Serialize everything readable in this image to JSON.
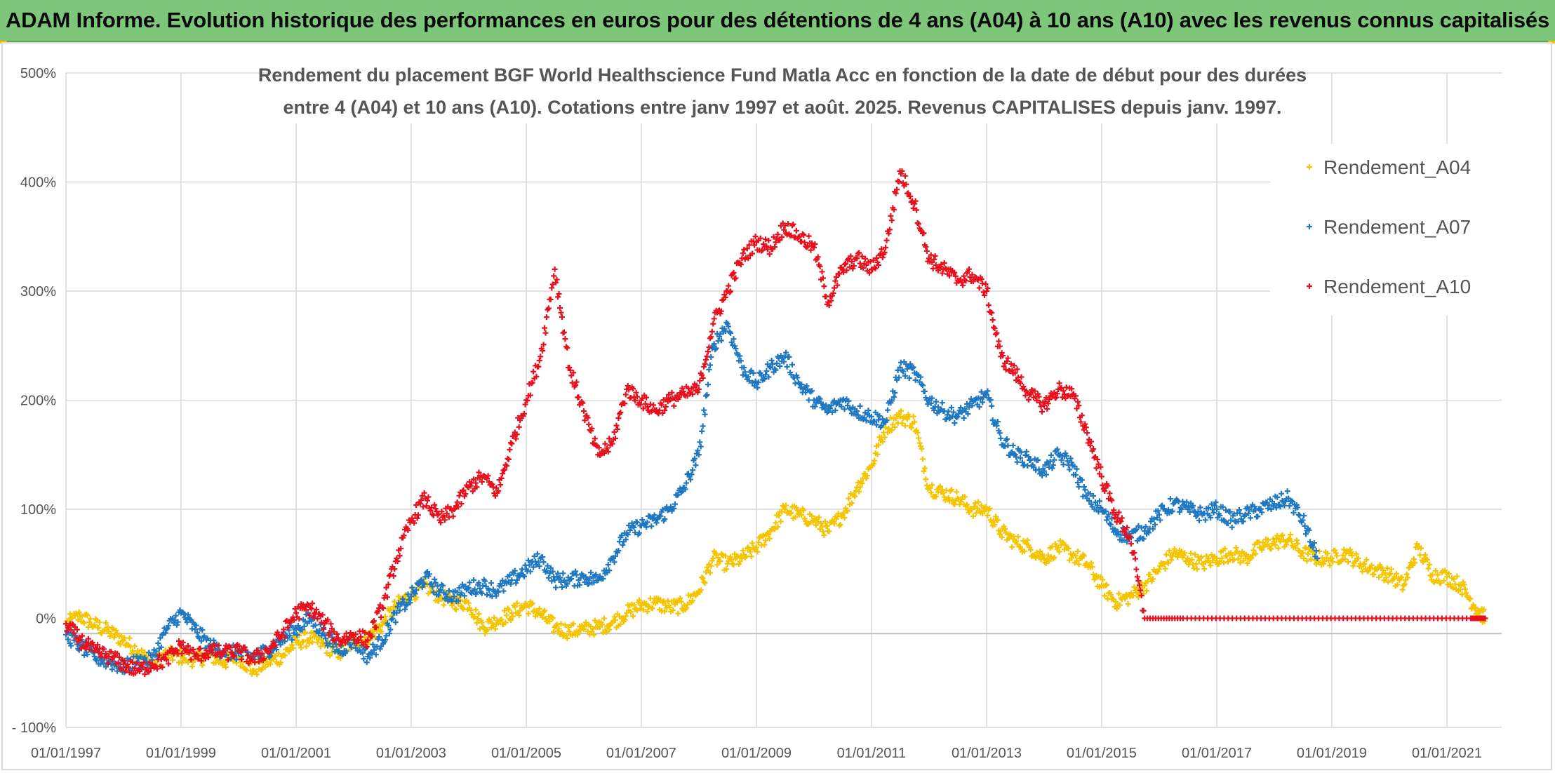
{
  "banner": {
    "title": "ADAM Informe. Evolution historique des performances en euros pour des détentions de 4 ans (A04) à 10 ans (A10) avec les revenus connus capitalisés"
  },
  "colors": {
    "banner_bg": "#7dc67a",
    "A04": "#f5c400",
    "A07": "#1f78c1",
    "A10": "#e8101c",
    "grid": "#d9d9d9",
    "axis_text": "#555555"
  },
  "chart_data": {
    "type": "scatter",
    "title": [
      "Rendement du placement BGF World Healthscience Fund Matla Acc en fonction de la date de début pour des durées",
      "entre 4 (A04) et 10 ans (A10). Cotations entre janv 1997 et août. 2025. Revenus CAPITALISES depuis janv. 1997."
    ],
    "x_ticks": [
      "01/01/1997",
      "01/01/1999",
      "01/01/2001",
      "01/01/2003",
      "01/01/2005",
      "01/01/2007",
      "01/01/2009",
      "01/01/2011",
      "01/01/2013",
      "01/01/2015",
      "01/01/2017",
      "01/01/2019",
      "01/01/2021"
    ],
    "y_ticks": [
      "- 100%",
      "0%",
      "100%",
      "200%",
      "300%",
      "400%",
      "500%"
    ],
    "xlim": [
      "1997-01-01",
      "2021-09-01"
    ],
    "ylim": [
      -100,
      500
    ],
    "grid": true,
    "legend_position": "top-right",
    "marker": "+",
    "series": [
      {
        "name": "Rendement_A04",
        "color": "#f5c400",
        "points": [
          [
            "1997-01-01",
            -5
          ],
          [
            "1997-04-01",
            2
          ],
          [
            "1997-07-01",
            -6
          ],
          [
            "1997-10-01",
            -12
          ],
          [
            "1998-01-01",
            -20
          ],
          [
            "1998-04-01",
            -30
          ],
          [
            "1998-07-01",
            -42
          ],
          [
            "1998-10-01",
            -33
          ],
          [
            "1999-01-01",
            -35
          ],
          [
            "1999-04-01",
            -38
          ],
          [
            "1999-07-01",
            -34
          ],
          [
            "1999-10-01",
            -40
          ],
          [
            "2000-01-01",
            -35
          ],
          [
            "2000-04-01",
            -48
          ],
          [
            "2000-07-01",
            -40
          ],
          [
            "2000-10-01",
            -35
          ],
          [
            "2001-01-01",
            -22
          ],
          [
            "2001-04-01",
            -18
          ],
          [
            "2001-07-01",
            -25
          ],
          [
            "2001-10-01",
            -32
          ],
          [
            "2002-01-01",
            -22
          ],
          [
            "2002-04-01",
            -18
          ],
          [
            "2002-07-01",
            -6
          ],
          [
            "2002-10-01",
            12
          ],
          [
            "2003-01-01",
            22
          ],
          [
            "2003-04-01",
            30
          ],
          [
            "2003-07-01",
            20
          ],
          [
            "2003-10-01",
            15
          ],
          [
            "2004-01-01",
            14
          ],
          [
            "2004-04-01",
            -8
          ],
          [
            "2004-07-01",
            -2
          ],
          [
            "2004-10-01",
            5
          ],
          [
            "2005-01-01",
            12
          ],
          [
            "2005-04-01",
            4
          ],
          [
            "2005-07-01",
            -8
          ],
          [
            "2005-10-01",
            -12
          ],
          [
            "2006-01-01",
            -10
          ],
          [
            "2006-04-01",
            -8
          ],
          [
            "2006-07-01",
            -4
          ],
          [
            "2006-10-01",
            5
          ],
          [
            "2007-01-01",
            12
          ],
          [
            "2007-04-01",
            14
          ],
          [
            "2007-07-01",
            10
          ],
          [
            "2007-10-01",
            12
          ],
          [
            "2008-01-01",
            25
          ],
          [
            "2008-04-01",
            55
          ],
          [
            "2008-07-01",
            50
          ],
          [
            "2008-10-01",
            55
          ],
          [
            "2009-01-01",
            65
          ],
          [
            "2009-04-01",
            80
          ],
          [
            "2009-07-01",
            100
          ],
          [
            "2009-10-01",
            95
          ],
          [
            "2010-01-01",
            90
          ],
          [
            "2010-04-01",
            80
          ],
          [
            "2010-07-01",
            95
          ],
          [
            "2010-10-01",
            120
          ],
          [
            "2011-01-01",
            140
          ],
          [
            "2011-04-01",
            175
          ],
          [
            "2011-07-01",
            185
          ],
          [
            "2011-10-01",
            180
          ],
          [
            "2012-01-01",
            120
          ],
          [
            "2012-04-01",
            115
          ],
          [
            "2012-07-01",
            110
          ],
          [
            "2012-10-01",
            100
          ],
          [
            "2013-01-01",
            100
          ],
          [
            "2013-04-01",
            80
          ],
          [
            "2013-07-01",
            70
          ],
          [
            "2013-10-01",
            65
          ],
          [
            "2014-01-01",
            55
          ],
          [
            "2014-04-01",
            65
          ],
          [
            "2014-07-01",
            58
          ],
          [
            "2014-10-01",
            50
          ],
          [
            "2015-01-01",
            30
          ],
          [
            "2015-04-01",
            15
          ],
          [
            "2015-07-01",
            20
          ],
          [
            "2015-10-01",
            30
          ],
          [
            "2016-01-01",
            45
          ],
          [
            "2016-04-01",
            60
          ],
          [
            "2016-07-01",
            55
          ],
          [
            "2016-10-01",
            50
          ],
          [
            "2017-01-01",
            55
          ],
          [
            "2017-04-01",
            60
          ],
          [
            "2017-07-01",
            55
          ],
          [
            "2017-10-01",
            65
          ],
          [
            "2018-01-01",
            70
          ],
          [
            "2018-04-01",
            72
          ],
          [
            "2018-07-01",
            60
          ],
          [
            "2018-10-01",
            55
          ],
          [
            "2019-01-01",
            55
          ],
          [
            "2019-04-01",
            60
          ],
          [
            "2019-07-01",
            50
          ],
          [
            "2019-10-01",
            45
          ],
          [
            "2020-01-01",
            40
          ],
          [
            "2020-04-01",
            30
          ],
          [
            "2020-07-01",
            65
          ],
          [
            "2020-10-01",
            40
          ],
          [
            "2021-01-01",
            38
          ],
          [
            "2021-04-01",
            30
          ],
          [
            "2021-07-01",
            10
          ],
          [
            "2021-09-01",
            0
          ]
        ]
      },
      {
        "name": "Rendement_A07",
        "color": "#1f78c1",
        "points": [
          [
            "1997-01-01",
            -15
          ],
          [
            "1997-04-01",
            -25
          ],
          [
            "1997-07-01",
            -35
          ],
          [
            "1997-10-01",
            -40
          ],
          [
            "1998-01-01",
            -45
          ],
          [
            "1998-04-01",
            -40
          ],
          [
            "1998-07-01",
            -38
          ],
          [
            "1998-10-01",
            -10
          ],
          [
            "1999-01-01",
            5
          ],
          [
            "1999-04-01",
            -10
          ],
          [
            "1999-07-01",
            -25
          ],
          [
            "1999-10-01",
            -30
          ],
          [
            "2000-01-01",
            -32
          ],
          [
            "2000-04-01",
            -35
          ],
          [
            "2000-07-01",
            -30
          ],
          [
            "2000-10-01",
            -20
          ],
          [
            "2001-01-01",
            -10
          ],
          [
            "2001-04-01",
            0
          ],
          [
            "2001-07-01",
            -15
          ],
          [
            "2001-10-01",
            -30
          ],
          [
            "2002-01-01",
            -20
          ],
          [
            "2002-04-01",
            -35
          ],
          [
            "2002-07-01",
            -20
          ],
          [
            "2002-10-01",
            5
          ],
          [
            "2003-01-01",
            20
          ],
          [
            "2003-04-01",
            38
          ],
          [
            "2003-07-01",
            25
          ],
          [
            "2003-10-01",
            20
          ],
          [
            "2004-01-01",
            28
          ],
          [
            "2004-04-01",
            30
          ],
          [
            "2004-07-01",
            25
          ],
          [
            "2004-10-01",
            35
          ],
          [
            "2005-01-01",
            45
          ],
          [
            "2005-04-01",
            55
          ],
          [
            "2005-07-01",
            35
          ],
          [
            "2005-10-01",
            35
          ],
          [
            "2006-01-01",
            38
          ],
          [
            "2006-04-01",
            35
          ],
          [
            "2006-07-01",
            55
          ],
          [
            "2006-10-01",
            78
          ],
          [
            "2007-01-01",
            85
          ],
          [
            "2007-04-01",
            90
          ],
          [
            "2007-07-01",
            100
          ],
          [
            "2007-10-01",
            120
          ],
          [
            "2008-01-01",
            150
          ],
          [
            "2008-04-01",
            250
          ],
          [
            "2008-07-01",
            270
          ],
          [
            "2008-10-01",
            230
          ],
          [
            "2009-01-01",
            215
          ],
          [
            "2009-04-01",
            230
          ],
          [
            "2009-07-01",
            240
          ],
          [
            "2009-10-01",
            215
          ],
          [
            "2010-01-01",
            200
          ],
          [
            "2010-04-01",
            190
          ],
          [
            "2010-07-01",
            200
          ],
          [
            "2010-10-01",
            190
          ],
          [
            "2011-01-01",
            185
          ],
          [
            "2011-04-01",
            180
          ],
          [
            "2011-07-01",
            230
          ],
          [
            "2011-10-01",
            225
          ],
          [
            "2012-01-01",
            200
          ],
          [
            "2012-04-01",
            190
          ],
          [
            "2012-07-01",
            185
          ],
          [
            "2012-10-01",
            195
          ],
          [
            "2013-01-01",
            205
          ],
          [
            "2013-04-01",
            165
          ],
          [
            "2013-07-01",
            150
          ],
          [
            "2013-10-01",
            145
          ],
          [
            "2014-01-01",
            135
          ],
          [
            "2014-04-01",
            150
          ],
          [
            "2014-07-01",
            140
          ],
          [
            "2014-10-01",
            110
          ],
          [
            "2015-01-01",
            100
          ],
          [
            "2015-04-01",
            80
          ],
          [
            "2015-07-01",
            75
          ],
          [
            "2015-10-01",
            80
          ],
          [
            "2016-01-01",
            95
          ],
          [
            "2016-04-01",
            105
          ],
          [
            "2016-07-01",
            100
          ],
          [
            "2016-10-01",
            95
          ],
          [
            "2017-01-01",
            100
          ],
          [
            "2017-04-01",
            90
          ],
          [
            "2017-07-01",
            95
          ],
          [
            "2017-10-01",
            100
          ],
          [
            "2018-01-01",
            105
          ],
          [
            "2018-04-01",
            110
          ],
          [
            "2018-07-01",
            90
          ],
          [
            "2018-10-01",
            55
          ]
        ]
      },
      {
        "name": "Rendement_A10",
        "color": "#e8101c",
        "points": [
          [
            "1997-01-01",
            -5
          ],
          [
            "1997-04-01",
            -20
          ],
          [
            "1997-07-01",
            -30
          ],
          [
            "1997-10-01",
            -35
          ],
          [
            "1998-01-01",
            -42
          ],
          [
            "1998-04-01",
            -48
          ],
          [
            "1998-07-01",
            -42
          ],
          [
            "1998-10-01",
            -38
          ],
          [
            "1999-01-01",
            -25
          ],
          [
            "1999-04-01",
            -35
          ],
          [
            "1999-07-01",
            -30
          ],
          [
            "1999-10-01",
            -32
          ],
          [
            "2000-01-01",
            -30
          ],
          [
            "2000-04-01",
            -38
          ],
          [
            "2000-07-01",
            -30
          ],
          [
            "2000-10-01",
            -15
          ],
          [
            "2001-01-01",
            5
          ],
          [
            "2001-04-01",
            10
          ],
          [
            "2001-07-01",
            -5
          ],
          [
            "2001-10-01",
            -20
          ],
          [
            "2002-01-01",
            -15
          ],
          [
            "2002-04-01",
            -20
          ],
          [
            "2002-07-01",
            10
          ],
          [
            "2002-10-01",
            55
          ],
          [
            "2003-01-01",
            90
          ],
          [
            "2003-04-01",
            110
          ],
          [
            "2003-07-01",
            90
          ],
          [
            "2003-10-01",
            100
          ],
          [
            "2004-01-01",
            120
          ],
          [
            "2004-04-01",
            130
          ],
          [
            "2004-07-01",
            115
          ],
          [
            "2004-10-01",
            160
          ],
          [
            "2005-01-01",
            200
          ],
          [
            "2005-04-01",
            240
          ],
          [
            "2005-07-01",
            320
          ],
          [
            "2005-10-01",
            230
          ],
          [
            "2006-01-01",
            190
          ],
          [
            "2006-04-01",
            150
          ],
          [
            "2006-07-01",
            160
          ],
          [
            "2006-10-01",
            210
          ],
          [
            "2007-01-01",
            200
          ],
          [
            "2007-04-01",
            190
          ],
          [
            "2007-07-01",
            200
          ],
          [
            "2007-10-01",
            205
          ],
          [
            "2008-01-01",
            210
          ],
          [
            "2008-04-01",
            270
          ],
          [
            "2008-07-01",
            300
          ],
          [
            "2008-10-01",
            330
          ],
          [
            "2009-01-01",
            345
          ],
          [
            "2009-04-01",
            340
          ],
          [
            "2009-07-01",
            360
          ],
          [
            "2009-10-01",
            350
          ],
          [
            "2010-01-01",
            340
          ],
          [
            "2010-04-01",
            290
          ],
          [
            "2010-07-01",
            320
          ],
          [
            "2010-10-01",
            330
          ],
          [
            "2011-01-01",
            320
          ],
          [
            "2011-04-01",
            340
          ],
          [
            "2011-07-01",
            410
          ],
          [
            "2011-10-01",
            380
          ],
          [
            "2012-01-01",
            330
          ],
          [
            "2012-04-01",
            320
          ],
          [
            "2012-07-01",
            310
          ],
          [
            "2012-10-01",
            315
          ],
          [
            "2013-01-01",
            300
          ],
          [
            "2013-04-01",
            240
          ],
          [
            "2013-07-01",
            225
          ],
          [
            "2013-10-01",
            205
          ],
          [
            "2014-01-01",
            195
          ],
          [
            "2014-04-01",
            210
          ],
          [
            "2014-07-01",
            205
          ],
          [
            "2014-10-01",
            170
          ],
          [
            "2015-01-01",
            130
          ],
          [
            "2015-04-01",
            95
          ],
          [
            "2015-07-01",
            75
          ],
          [
            "2015-10-01",
            0
          ],
          [
            "2016-06-01",
            0
          ],
          [
            "2017-06-01",
            0
          ],
          [
            "2018-06-01",
            0
          ],
          [
            "2019-06-01",
            0
          ],
          [
            "2020-06-01",
            0
          ],
          [
            "2021-06-01",
            0
          ],
          [
            "2021-09-01",
            0
          ]
        ]
      }
    ]
  }
}
